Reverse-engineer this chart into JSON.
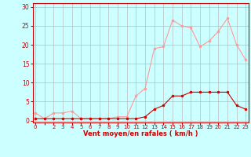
{
  "x_avg": [
    0,
    1,
    2,
    3,
    4,
    5,
    6,
    7,
    8,
    9,
    10,
    11,
    12,
    13,
    14,
    15,
    16,
    17,
    18,
    19,
    20,
    21,
    22,
    23
  ],
  "wind_avg": [
    0.5,
    0.5,
    0.5,
    0.5,
    0.5,
    0.5,
    0.5,
    0.5,
    0.5,
    0.5,
    0.5,
    0.5,
    1.0,
    3.0,
    4.0,
    6.5,
    6.5,
    7.5,
    7.5,
    7.5,
    7.5,
    7.5,
    4.0,
    3.0
  ],
  "x_gust": [
    0,
    1,
    2,
    3,
    4,
    5,
    6,
    7,
    8,
    9,
    10,
    11,
    12,
    13,
    14,
    15,
    16,
    17,
    18,
    19,
    20,
    21,
    22,
    23
  ],
  "wind_gust": [
    2.0,
    0.5,
    2.0,
    2.0,
    2.5,
    0.5,
    0.5,
    0.5,
    0.5,
    1.0,
    1.0,
    6.5,
    8.5,
    19.0,
    19.5,
    26.5,
    25.0,
    24.5,
    19.5,
    21.0,
    23.5,
    27.0,
    20.0,
    16.0
  ],
  "wind_avg_color": "#cc0000",
  "wind_gust_color": "#ff9999",
  "background_color": "#ccffff",
  "grid_color": "#bbbbbb",
  "xlabel": "Vent moyen/en rafales ( km/h )",
  "xlabel_color": "#cc0000",
  "yticks": [
    0,
    5,
    10,
    15,
    20,
    25,
    30
  ],
  "xticks": [
    0,
    2,
    3,
    4,
    5,
    6,
    7,
    8,
    9,
    10,
    11,
    12,
    13,
    14,
    15,
    16,
    17,
    18,
    19,
    20,
    21,
    22,
    23
  ],
  "xlim": [
    -0.3,
    23.3
  ],
  "ylim": [
    -0.5,
    31
  ],
  "tick_color": "#cc0000",
  "spine_color": "#cc0000",
  "marker_size": 2.0,
  "line_width": 0.8
}
